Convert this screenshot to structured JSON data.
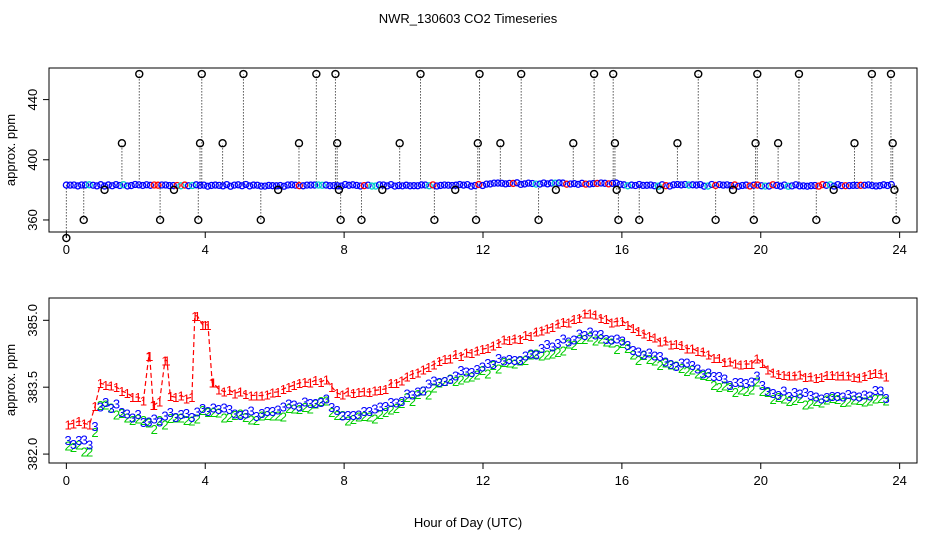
{
  "figure": {
    "title": "NWR_130603  CO2 Timeseries",
    "xlabel": "Hour of Day (UTC)"
  },
  "colors": {
    "series1": "#ff0000",
    "series2": "#00cc00",
    "series3": "#0000ff",
    "outlier": "#000000",
    "raw_alt": "#00cccc"
  },
  "chart_data": [
    {
      "type": "scatter",
      "title": "NWR_130603  CO2 Timeseries",
      "xlabel": "",
      "ylabel": "approx. ppm",
      "xlim": [
        -0.5,
        24.5
      ],
      "ylim": [
        352,
        461
      ],
      "xticks": [
        0,
        4,
        8,
        12,
        16,
        20,
        24
      ],
      "yticks": [
        360,
        400,
        440
      ],
      "baseline": 383,
      "outlier_marker": "circle",
      "outliers": [
        {
          "x": 0.0,
          "y": 348
        },
        {
          "x": 0.5,
          "y": 360
        },
        {
          "x": 1.1,
          "y": 380
        },
        {
          "x": 1.6,
          "y": 411
        },
        {
          "x": 2.1,
          "y": 457
        },
        {
          "x": 2.7,
          "y": 360
        },
        {
          "x": 3.1,
          "y": 380
        },
        {
          "x": 3.8,
          "y": 360
        },
        {
          "x": 3.85,
          "y": 411
        },
        {
          "x": 3.9,
          "y": 457
        },
        {
          "x": 4.5,
          "y": 411
        },
        {
          "x": 5.1,
          "y": 457
        },
        {
          "x": 5.6,
          "y": 360
        },
        {
          "x": 6.1,
          "y": 380
        },
        {
          "x": 6.7,
          "y": 411
        },
        {
          "x": 7.2,
          "y": 457
        },
        {
          "x": 7.75,
          "y": 457
        },
        {
          "x": 7.8,
          "y": 411
        },
        {
          "x": 7.85,
          "y": 380
        },
        {
          "x": 7.9,
          "y": 360
        },
        {
          "x": 8.5,
          "y": 360
        },
        {
          "x": 9.1,
          "y": 380
        },
        {
          "x": 9.6,
          "y": 411
        },
        {
          "x": 10.2,
          "y": 457
        },
        {
          "x": 10.6,
          "y": 360
        },
        {
          "x": 11.2,
          "y": 380
        },
        {
          "x": 11.8,
          "y": 360
        },
        {
          "x": 11.85,
          "y": 411
        },
        {
          "x": 11.9,
          "y": 457
        },
        {
          "x": 12.5,
          "y": 411
        },
        {
          "x": 13.1,
          "y": 457
        },
        {
          "x": 13.6,
          "y": 360
        },
        {
          "x": 14.1,
          "y": 380
        },
        {
          "x": 14.6,
          "y": 411
        },
        {
          "x": 15.2,
          "y": 457
        },
        {
          "x": 15.75,
          "y": 457
        },
        {
          "x": 15.8,
          "y": 411
        },
        {
          "x": 15.85,
          "y": 380
        },
        {
          "x": 15.9,
          "y": 360
        },
        {
          "x": 16.5,
          "y": 360
        },
        {
          "x": 17.1,
          "y": 380
        },
        {
          "x": 17.6,
          "y": 411
        },
        {
          "x": 18.2,
          "y": 457
        },
        {
          "x": 18.7,
          "y": 360
        },
        {
          "x": 19.2,
          "y": 380
        },
        {
          "x": 19.8,
          "y": 360
        },
        {
          "x": 19.85,
          "y": 411
        },
        {
          "x": 19.9,
          "y": 457
        },
        {
          "x": 20.5,
          "y": 411
        },
        {
          "x": 21.1,
          "y": 457
        },
        {
          "x": 21.6,
          "y": 360
        },
        {
          "x": 22.1,
          "y": 380
        },
        {
          "x": 22.7,
          "y": 411
        },
        {
          "x": 23.2,
          "y": 457
        },
        {
          "x": 23.75,
          "y": 457
        },
        {
          "x": 23.8,
          "y": 411
        },
        {
          "x": 23.85,
          "y": 380
        },
        {
          "x": 23.9,
          "y": 360
        }
      ]
    },
    {
      "type": "line",
      "title": "",
      "xlabel": "Hour of Day (UTC)",
      "ylabel": "approx. ppm",
      "xlim": [
        -0.5,
        24.5
      ],
      "ylim": [
        381.8,
        385.5
      ],
      "xticks": [
        0,
        4,
        8,
        12,
        16,
        20,
        24
      ],
      "yticks": [
        382.0,
        383.5,
        385.0
      ],
      "ytick_labels": [
        "382.0",
        "383.5",
        "385.0"
      ],
      "series": [
        {
          "name": "1",
          "marker": "1",
          "offset": 0.42,
          "mode": "line"
        },
        {
          "name": "2",
          "marker": "2",
          "offset": -0.12,
          "mode": "points"
        },
        {
          "name": "3",
          "marker": "3",
          "offset": 0.0,
          "mode": "points"
        }
      ],
      "base_curve": [
        {
          "x": 0.0,
          "y": 382.25
        },
        {
          "x": 0.4,
          "y": 382.3
        },
        {
          "x": 0.7,
          "y": 382.2
        },
        {
          "x": 1.0,
          "y": 383.2
        },
        {
          "x": 1.5,
          "y": 383.05
        },
        {
          "x": 2.0,
          "y": 382.85
        },
        {
          "x": 2.4,
          "y": 382.75
        },
        {
          "x": 2.7,
          "y": 382.8
        },
        {
          "x": 3.0,
          "y": 382.9
        },
        {
          "x": 3.5,
          "y": 382.85
        },
        {
          "x": 4.0,
          "y": 383.05
        },
        {
          "x": 4.5,
          "y": 383.0
        },
        {
          "x": 5.0,
          "y": 382.95
        },
        {
          "x": 5.5,
          "y": 382.9
        },
        {
          "x": 6.0,
          "y": 382.95
        },
        {
          "x": 6.5,
          "y": 383.1
        },
        {
          "x": 7.0,
          "y": 383.2
        },
        {
          "x": 7.5,
          "y": 383.25
        },
        {
          "x": 7.8,
          "y": 382.95
        },
        {
          "x": 8.5,
          "y": 382.95
        },
        {
          "x": 9.0,
          "y": 383.0
        },
        {
          "x": 9.5,
          "y": 383.2
        },
        {
          "x": 10.0,
          "y": 383.4
        },
        {
          "x": 10.5,
          "y": 383.55
        },
        {
          "x": 11.0,
          "y": 383.75
        },
        {
          "x": 11.5,
          "y": 383.85
        },
        {
          "x": 12.0,
          "y": 383.95
        },
        {
          "x": 12.5,
          "y": 384.1
        },
        {
          "x": 13.0,
          "y": 384.15
        },
        {
          "x": 13.5,
          "y": 384.3
        },
        {
          "x": 14.0,
          "y": 384.45
        },
        {
          "x": 14.5,
          "y": 384.55
        },
        {
          "x": 15.0,
          "y": 384.75
        },
        {
          "x": 15.5,
          "y": 384.65
        },
        {
          "x": 15.8,
          "y": 384.5
        },
        {
          "x": 16.0,
          "y": 384.6
        },
        {
          "x": 16.5,
          "y": 384.3
        },
        {
          "x": 17.0,
          "y": 384.15
        },
        {
          "x": 17.5,
          "y": 384.05
        },
        {
          "x": 18.0,
          "y": 383.95
        },
        {
          "x": 18.5,
          "y": 383.8
        },
        {
          "x": 19.0,
          "y": 383.65
        },
        {
          "x": 19.5,
          "y": 383.55
        },
        {
          "x": 19.9,
          "y": 383.7
        },
        {
          "x": 20.2,
          "y": 383.45
        },
        {
          "x": 20.5,
          "y": 383.4
        },
        {
          "x": 21.0,
          "y": 383.35
        },
        {
          "x": 21.5,
          "y": 383.3
        },
        {
          "x": 22.0,
          "y": 383.35
        },
        {
          "x": 22.5,
          "y": 383.35
        },
        {
          "x": 23.0,
          "y": 383.3
        },
        {
          "x": 23.4,
          "y": 383.45
        },
        {
          "x": 23.7,
          "y": 383.25
        }
      ],
      "series1_spikes": [
        {
          "x": 2.4,
          "y": 384.2
        },
        {
          "x": 2.5,
          "y": 383.1
        },
        {
          "x": 2.9,
          "y": 384.1
        },
        {
          "x": 3.0,
          "y": 383.3
        },
        {
          "x": 3.7,
          "y": 385.1
        },
        {
          "x": 4.0,
          "y": 384.9
        },
        {
          "x": 4.2,
          "y": 383.6
        }
      ]
    }
  ]
}
